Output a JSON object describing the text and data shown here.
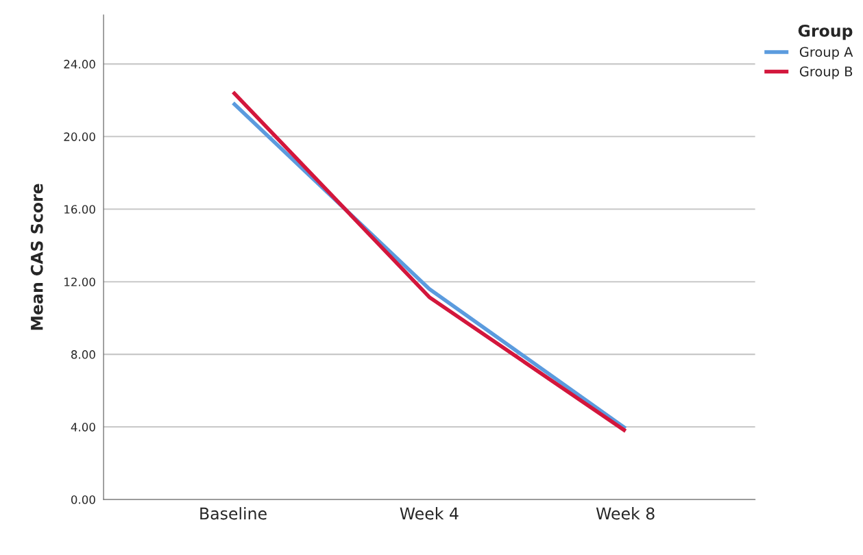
{
  "chart_data": {
    "type": "line",
    "ylabel": "Mean CAS Score",
    "legend_title": "Group",
    "categories": [
      "Baseline",
      "Week 4",
      "Week 8"
    ],
    "series": [
      {
        "name": "Group A",
        "color": "#5b9bde",
        "values": [
          21.85,
          11.6,
          3.92
        ]
      },
      {
        "name": "Group B",
        "color": "#d3163c",
        "values": [
          22.45,
          11.15,
          3.77
        ]
      }
    ],
    "ylim": [
      0,
      26.7
    ],
    "yticks": [
      {
        "value": 0,
        "label": "0.00"
      },
      {
        "value": 4,
        "label": "4.00"
      },
      {
        "value": 8,
        "label": "8.00"
      },
      {
        "value": 12,
        "label": "12.00"
      },
      {
        "value": 16,
        "label": "16.00"
      },
      {
        "value": 20,
        "label": "20.00"
      },
      {
        "value": 24,
        "label": "24.00"
      }
    ],
    "grid": "y",
    "legend": "top right",
    "marker": "none",
    "line_style": "solid"
  }
}
